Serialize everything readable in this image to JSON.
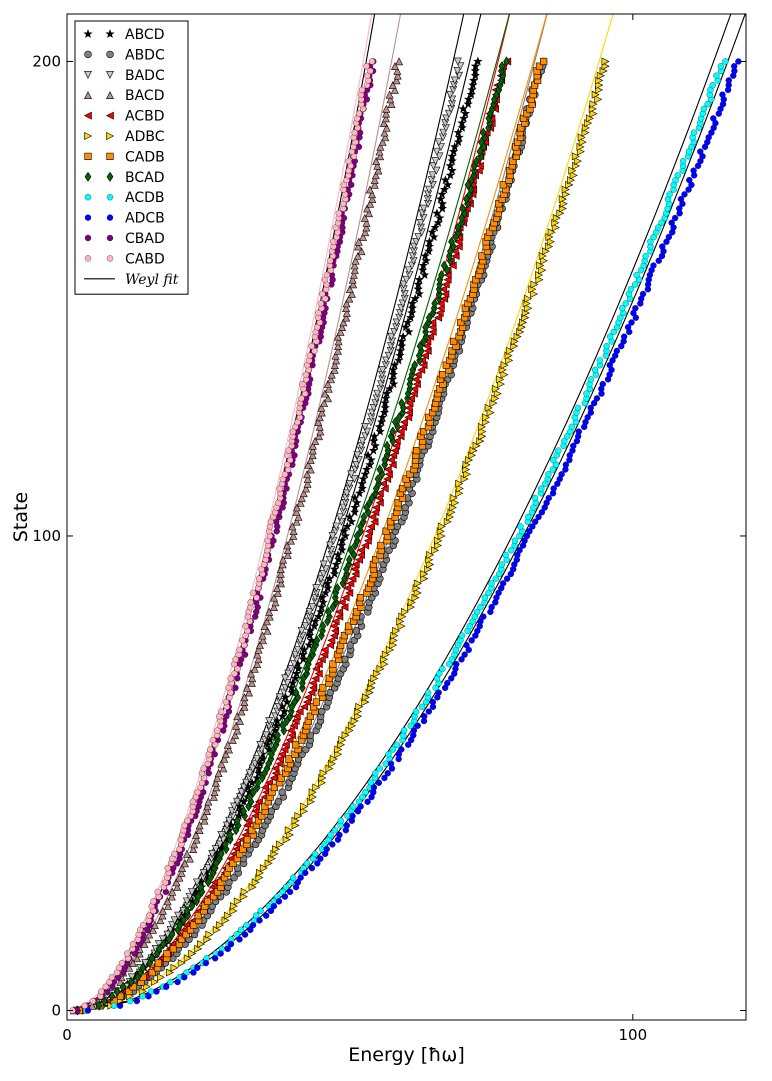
{
  "chart_data": {
    "type": "scatter",
    "title": "",
    "xlabel": "Energy [ħω]",
    "ylabel": "State",
    "xlim": [
      0,
      120
    ],
    "ylim": [
      -2,
      210
    ],
    "x_ticks": [
      0,
      100
    ],
    "x_tick_labels": [
      "0",
      "100"
    ],
    "y_ticks": [
      0,
      100,
      200
    ],
    "y_tick_labels": [
      "0",
      "100",
      "200"
    ],
    "legend_position": "upper-left",
    "grid": false,
    "series": [
      {
        "name": "ABCD",
        "marker": "star",
        "color": "#000000",
        "fit_color": "#000000",
        "x_at_0": 2.0,
        "x_at_100": 49.0,
        "x_at_200": 72.5
      },
      {
        "name": "ABDC",
        "marker": "circle",
        "color": "#808080",
        "fit_color": "#808080",
        "x_at_0": 2.5,
        "x_at_100": 60.5,
        "x_at_200": 84.0
      },
      {
        "name": "BADC",
        "marker": "triangle-down",
        "color": "#c8c8c8",
        "fit_color": "#000000",
        "x_at_0": 2.0,
        "x_at_100": 48.0,
        "x_at_200": 69.5
      },
      {
        "name": "BACD",
        "marker": "triangle-up",
        "color": "#bc8f8f",
        "fit_color": "#bc8f8f",
        "x_at_0": 1.5,
        "x_at_100": 40.0,
        "x_at_200": 58.5
      },
      {
        "name": "ACBD",
        "marker": "triangle-left",
        "color": "#ff0000",
        "fit_color": "#ff0000",
        "x_at_0": 2.5,
        "x_at_100": 54.5,
        "x_at_200": 77.5
      },
      {
        "name": "ADBC",
        "marker": "triangle-right",
        "color": "#ffd700",
        "fit_color": "#ffd700",
        "x_at_0": 3.0,
        "x_at_100": 69.0,
        "x_at_200": 95.5
      },
      {
        "name": "CADB",
        "marker": "square",
        "color": "#ff8c00",
        "fit_color": "#ff8c00",
        "x_at_0": 2.5,
        "x_at_100": 55.0,
        "x_at_200": 84.0
      },
      {
        "name": "BCAD",
        "marker": "diamond",
        "color": "#006400",
        "fit_color": "#006400",
        "x_at_0": 2.0,
        "x_at_100": 48.5,
        "x_at_200": 77.5
      },
      {
        "name": "ACDB",
        "marker": "point",
        "color": "#00ffff",
        "fit_color": "#000000",
        "x_at_0": 3.0,
        "x_at_100": 83.0,
        "x_at_200": 116.0
      },
      {
        "name": "ADCB",
        "marker": "point",
        "color": "#0000ff",
        "fit_color": "#000000",
        "x_at_0": 3.5,
        "x_at_100": 85.5,
        "x_at_200": 118.5
      },
      {
        "name": "CBAD",
        "marker": "point",
        "color": "#800080",
        "fit_color": "#000000",
        "x_at_0": 1.5,
        "x_at_100": 36.0,
        "x_at_200": 54.0
      },
      {
        "name": "CABD",
        "marker": "point",
        "color": "#ffb6c1",
        "fit_color": "#ffb6c1",
        "x_at_0": 1.0,
        "x_at_100": 35.0,
        "x_at_200": 53.5
      }
    ],
    "fit_legend_label": "Weyl fit"
  }
}
